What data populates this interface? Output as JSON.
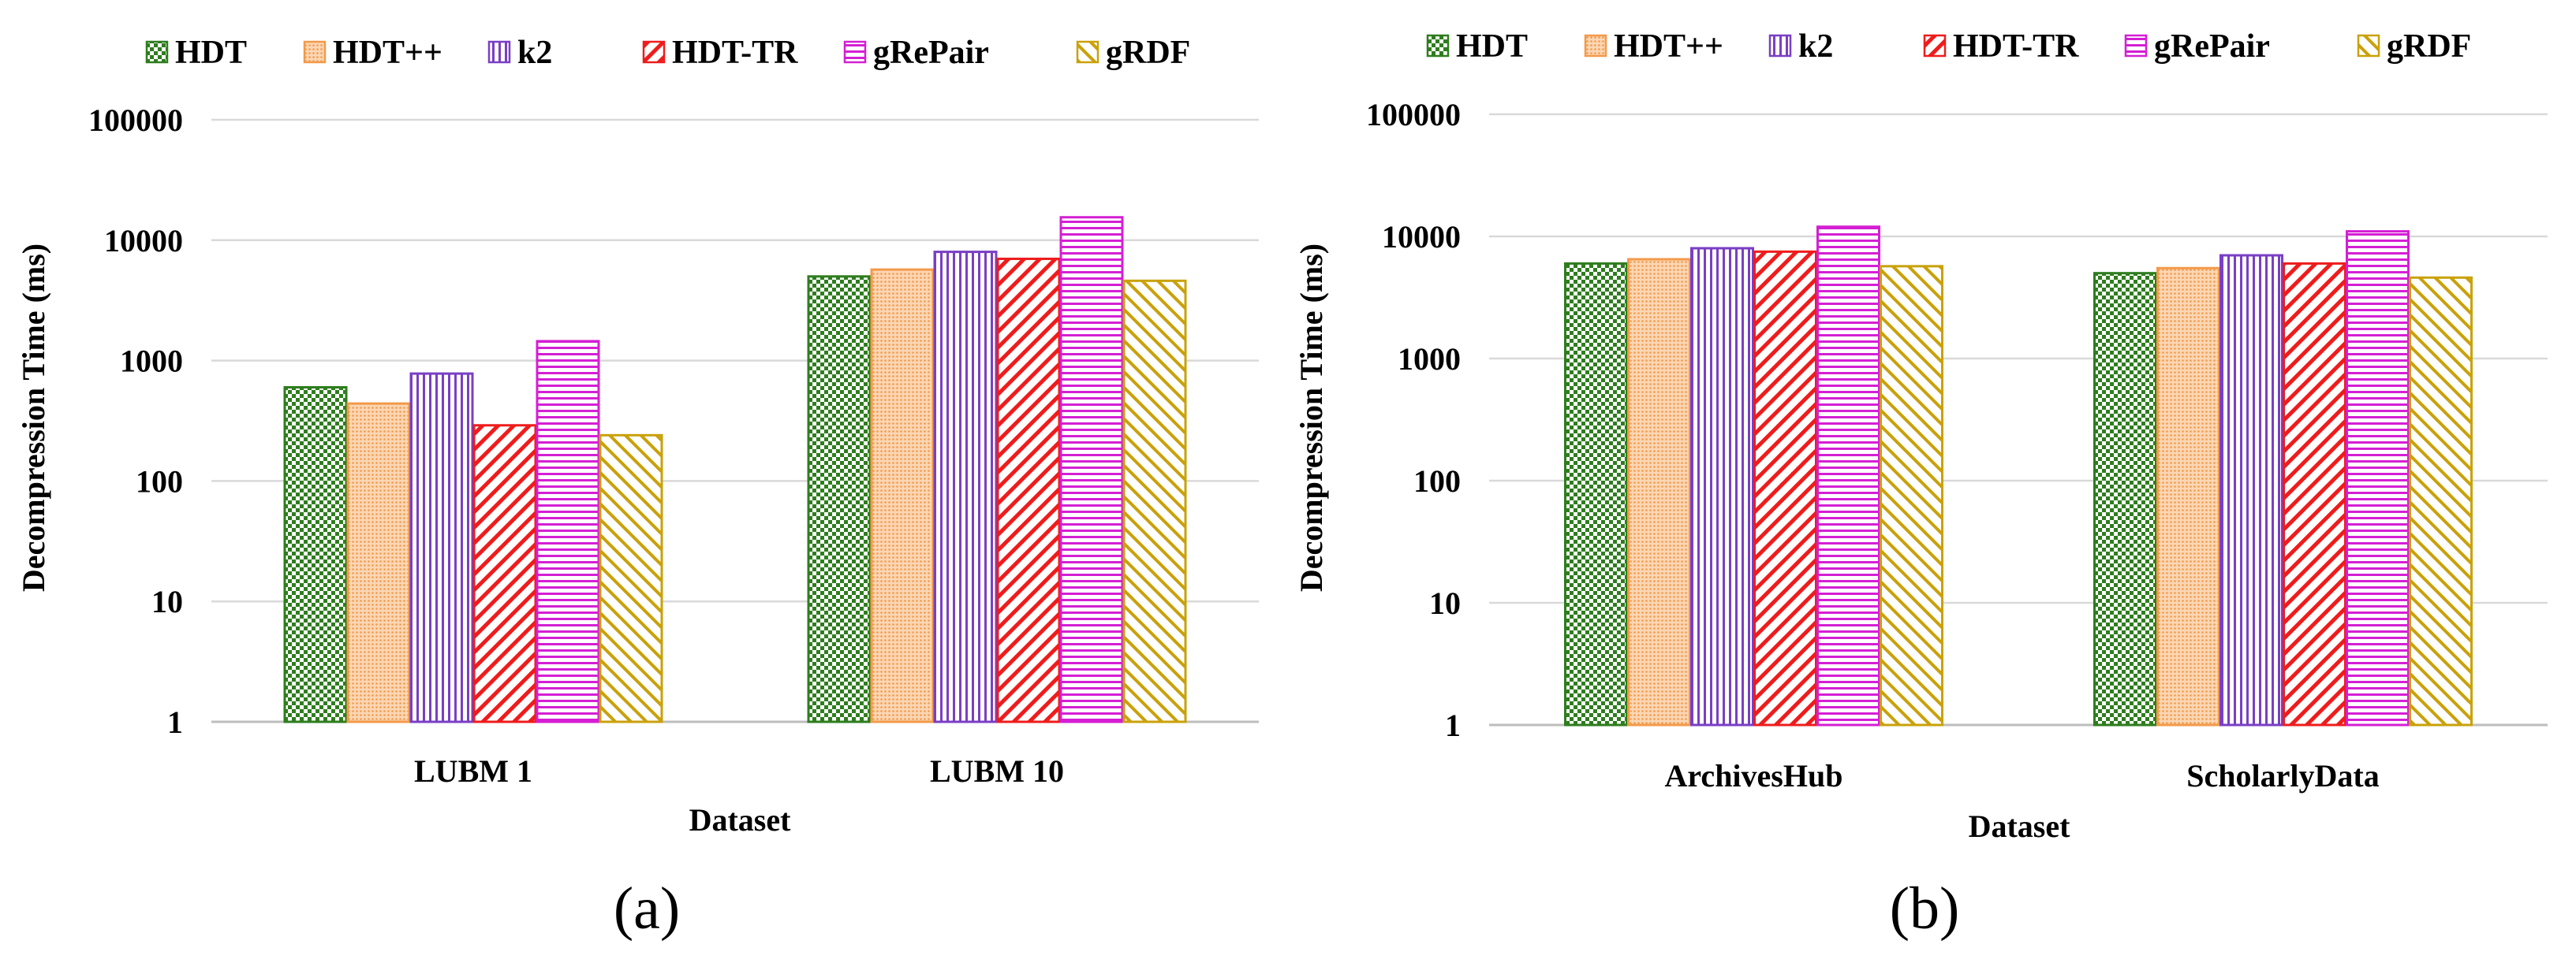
{
  "series_styles": [
    {
      "name": "HDT",
      "color": "#2e7d1e",
      "pattern": "checker"
    },
    {
      "name": "HDT++",
      "color": "#f39a4a",
      "pattern": "dots"
    },
    {
      "name": "k2",
      "color": "#7a3fc4",
      "pattern": "vlines"
    },
    {
      "name": "HDT-TR",
      "color": "#ee1c1c",
      "pattern": "bdiag"
    },
    {
      "name": "gRePair",
      "color": "#d41fd4",
      "pattern": "hlines"
    },
    {
      "name": "gRDF",
      "color": "#c9a10a",
      "pattern": "fdiag"
    }
  ],
  "panel_labels": [
    "(a)",
    "(b)"
  ],
  "chart_data": [
    {
      "type": "bar",
      "title": "",
      "xlabel": "Dataset",
      "ylabel": "Decompression Time (ms)",
      "yscale": "log",
      "ylim": [
        1,
        100000
      ],
      "yticks": [
        "1",
        "10",
        "100",
        "1000",
        "10000",
        "100000"
      ],
      "grid": true,
      "legend": "top",
      "categories": [
        "LUBM 1",
        "LUBM 10"
      ],
      "series": [
        {
          "name": "HDT",
          "values": [
            600,
            5000
          ]
        },
        {
          "name": "HDT++",
          "values": [
            440,
            5700
          ]
        },
        {
          "name": "k2",
          "values": [
            780,
            8000
          ]
        },
        {
          "name": "HDT-TR",
          "values": [
            290,
            7000
          ]
        },
        {
          "name": "gRePair",
          "values": [
            1450,
            15500
          ]
        },
        {
          "name": "gRDF",
          "values": [
            240,
            4600
          ]
        }
      ]
    },
    {
      "type": "bar",
      "title": "",
      "xlabel": "Dataset",
      "ylabel": "Decompression Time (ms)",
      "yscale": "log",
      "ylim": [
        1,
        100000
      ],
      "yticks": [
        "1",
        "10",
        "100",
        "1000",
        "10000",
        "100000"
      ],
      "grid": true,
      "legend": "top",
      "categories": [
        "ArchivesHub",
        "ScholarlyData"
      ],
      "series": [
        {
          "name": "HDT",
          "values": [
            6000,
            5000
          ]
        },
        {
          "name": "HDT++",
          "values": [
            6500,
            5500
          ]
        },
        {
          "name": "k2",
          "values": [
            8000,
            7000
          ]
        },
        {
          "name": "HDT-TR",
          "values": [
            7500,
            6000
          ]
        },
        {
          "name": "gRePair",
          "values": [
            12000,
            11000
          ]
        },
        {
          "name": "gRDF",
          "values": [
            5700,
            4600
          ]
        }
      ]
    }
  ]
}
